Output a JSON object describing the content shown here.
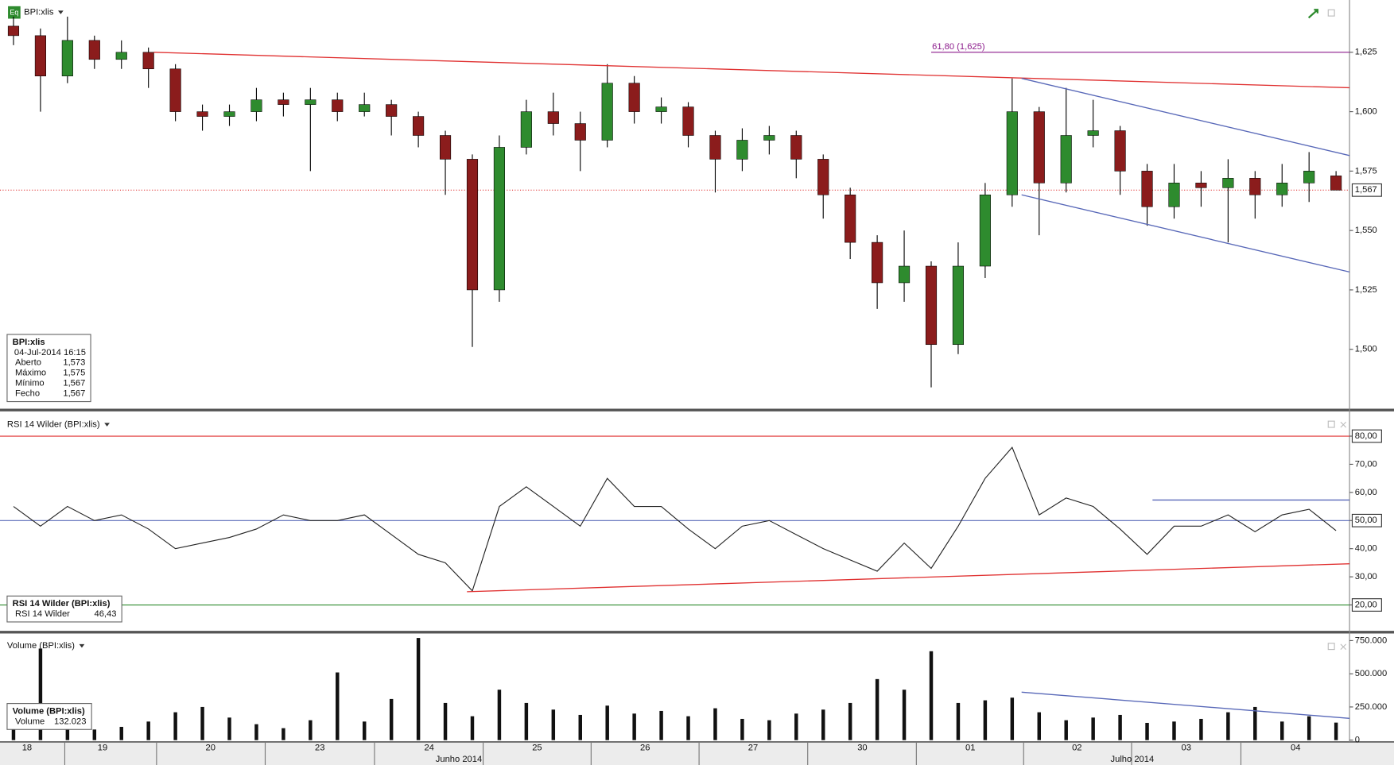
{
  "header": {
    "icon": "Eq"
  },
  "chart_data": [
    {
      "type": "candlestick",
      "title": "BPI:xlis",
      "open": [
        1636,
        1632,
        1615,
        1630,
        1622,
        1625,
        1618,
        1600,
        1598,
        1600,
        1605,
        1603,
        1605,
        1600,
        1603,
        1598,
        1590,
        1580,
        1525,
        1585,
        1600,
        1595,
        1588,
        1612,
        1600,
        1602,
        1590,
        1580,
        1588,
        1590,
        1580,
        1565,
        1545,
        1528,
        1535,
        1502,
        1535,
        1565,
        1600,
        1570,
        1590,
        1592,
        1575,
        1560,
        1570,
        1568,
        1572,
        1565,
        1570,
        1573
      ],
      "high": [
        1640,
        1635,
        1640,
        1632,
        1630,
        1627,
        1620,
        1603,
        1603,
        1610,
        1608,
        1610,
        1608,
        1608,
        1605,
        1600,
        1592,
        1582,
        1590,
        1605,
        1608,
        1600,
        1620,
        1615,
        1606,
        1604,
        1592,
        1593,
        1594,
        1592,
        1582,
        1568,
        1548,
        1550,
        1537,
        1545,
        1570,
        1614,
        1602,
        1610,
        1605,
        1594,
        1578,
        1578,
        1575,
        1580,
        1575,
        1578,
        1583,
        1575
      ],
      "low": [
        1628,
        1600,
        1612,
        1618,
        1618,
        1610,
        1596,
        1592,
        1594,
        1596,
        1598,
        1575,
        1596,
        1598,
        1590,
        1585,
        1565,
        1501,
        1520,
        1582,
        1590,
        1575,
        1585,
        1595,
        1595,
        1585,
        1566,
        1575,
        1582,
        1572,
        1555,
        1538,
        1517,
        1520,
        1484,
        1498,
        1530,
        1560,
        1548,
        1566,
        1585,
        1565,
        1552,
        1555,
        1560,
        1545,
        1555,
        1560,
        1562,
        1567
      ],
      "close": [
        1632,
        1615,
        1630,
        1622,
        1625,
        1618,
        1600,
        1598,
        1600,
        1605,
        1603,
        1605,
        1600,
        1603,
        1598,
        1590,
        1580,
        1525,
        1585,
        1600,
        1595,
        1588,
        1612,
        1600,
        1602,
        1590,
        1580,
        1588,
        1590,
        1580,
        1565,
        1545,
        1528,
        1535,
        1502,
        1535,
        1565,
        1600,
        1570,
        1590,
        1592,
        1575,
        1560,
        1570,
        1568,
        1572,
        1565,
        1570,
        1575,
        1567
      ],
      "up_color": "#2e8b2e",
      "down_color": "#8b1c1c",
      "ylim": [
        1475,
        1647
      ],
      "yticks": [
        {
          "value": 1500,
          "label": "1,500"
        },
        {
          "value": 1525,
          "label": "1,525"
        },
        {
          "value": 1550,
          "label": "1,550"
        },
        {
          "value": 1575,
          "label": "1,575"
        },
        {
          "value": 1600,
          "label": "1,600"
        },
        {
          "value": 1625,
          "label": "1,625"
        }
      ],
      "price_line": {
        "value": 1567,
        "label": "1,567",
        "color": "#e03030"
      },
      "annotation": {
        "label": "61,80 (1,625)",
        "value": 1625,
        "x_start": 34.5,
        "color": "#8b1a8b"
      },
      "trendlines": [
        {
          "x": [
            5.7,
            50.2
          ],
          "y": [
            1625,
            1610
          ],
          "color": "#e03030"
        },
        {
          "x": [
            37.85,
            50.2
          ],
          "y": [
            1614,
            1581
          ],
          "color": "#5868b8"
        },
        {
          "x": [
            37.85,
            50.2
          ],
          "y": [
            1565,
            1532
          ],
          "color": "#5868b8"
        }
      ],
      "info": {
        "title": "BPI:xlis",
        "date": "04-Jul-2014 16:15",
        "rows": [
          [
            "Aberto",
            "1,573"
          ],
          [
            "Máximo",
            "1,575"
          ],
          [
            "Mínimo",
            "1,567"
          ],
          [
            "Fecho",
            "1,567"
          ]
        ]
      }
    },
    {
      "type": "line",
      "title": "RSI 14 Wilder (BPI:xlis)",
      "values": [
        55,
        48,
        55,
        50,
        52,
        47,
        40,
        42,
        44,
        47,
        52,
        50,
        50,
        52,
        45,
        38,
        35,
        25,
        55,
        62,
        55,
        48,
        65,
        55,
        55,
        47,
        40,
        48,
        50,
        45,
        40,
        36,
        32,
        42,
        33,
        48,
        65,
        76,
        52,
        58,
        55,
        47,
        38,
        48,
        48,
        52,
        46,
        52,
        54,
        46.43
      ],
      "color": "#222222",
      "ylim": [
        10.8,
        88.8
      ],
      "yticks": [
        {
          "value": 20,
          "label": "20,00"
        },
        {
          "value": 30,
          "label": "30,00"
        },
        {
          "value": 40,
          "label": "40,00"
        },
        {
          "value": 50,
          "label": "50,00"
        },
        {
          "value": 60,
          "label": "60,00"
        },
        {
          "value": 70,
          "label": "70,00"
        },
        {
          "value": 80,
          "label": "80,00"
        }
      ],
      "levels": [
        {
          "value": 80,
          "color": "#e03030"
        },
        {
          "value": 50,
          "color": "#5868b8"
        },
        {
          "value": 20,
          "color": "#2e8b2e"
        }
      ],
      "trendlines": [
        {
          "x": [
            17.3,
            50.2
          ],
          "y": [
            24.7,
            34.7
          ],
          "color": "#e03030"
        },
        {
          "x": [
            42.7,
            50.2
          ],
          "y": [
            57.3,
            57.3
          ],
          "color": "#5868b8"
        }
      ],
      "info": {
        "title": "RSI 14 Wilder (BPI:xlis)",
        "rows": [
          [
            "RSI 14 Wilder",
            "46,43"
          ]
        ]
      }
    },
    {
      "type": "bar",
      "title": "Volume (BPI:xlis)",
      "values": [
        150000,
        690000,
        120000,
        80000,
        100000,
        140000,
        210000,
        250000,
        170000,
        120000,
        90000,
        150000,
        510000,
        140000,
        310000,
        770000,
        280000,
        180000,
        380000,
        280000,
        230000,
        190000,
        260000,
        200000,
        220000,
        180000,
        240000,
        160000,
        150000,
        200000,
        230000,
        280000,
        460000,
        380000,
        670000,
        280000,
        300000,
        320000,
        210000,
        150000,
        170000,
        190000,
        130000,
        140000,
        160000,
        210000,
        250000,
        140000,
        180000,
        132023
      ],
      "color": "#111111",
      "ylim": [
        -13400,
        803600
      ],
      "yticks": [
        0,
        {
          "value": 250000,
          "label": "250.000"
        },
        {
          "value": 500000,
          "label": "500.000"
        },
        {
          "value": 750000,
          "label": "750.000"
        }
      ],
      "trendlines": [
        {
          "x": [
            37.85,
            50.2
          ],
          "y": [
            361600,
            160700
          ],
          "color": "#5868b8"
        }
      ],
      "info": {
        "title": "Volume (BPI:xlis)",
        "rows": [
          [
            "Volume",
            "132.023"
          ]
        ]
      }
    }
  ],
  "x_axis": {
    "xlim": [
      0,
      50
    ],
    "xticks": [
      {
        "value": 1.0,
        "label": "18"
      },
      {
        "value": 3.8,
        "label": "19"
      },
      {
        "value": 7.8,
        "label": "20"
      },
      {
        "value": 11.85,
        "label": "23"
      },
      {
        "value": 15.9,
        "label": "24"
      },
      {
        "value": 19.9,
        "label": "25"
      },
      {
        "value": 23.9,
        "label": "26"
      },
      {
        "value": 27.9,
        "label": "27"
      },
      {
        "value": 31.95,
        "label": "30"
      },
      {
        "value": 35.95,
        "label": "01"
      },
      {
        "value": 39.9,
        "label": "02"
      },
      {
        "value": 43.95,
        "label": "03"
      },
      {
        "value": 48,
        "label": "04"
      }
    ],
    "months": [
      {
        "value": 17.0,
        "label": "Junho 2014"
      },
      {
        "value": 41.95,
        "label": "Julho 2014"
      }
    ]
  }
}
